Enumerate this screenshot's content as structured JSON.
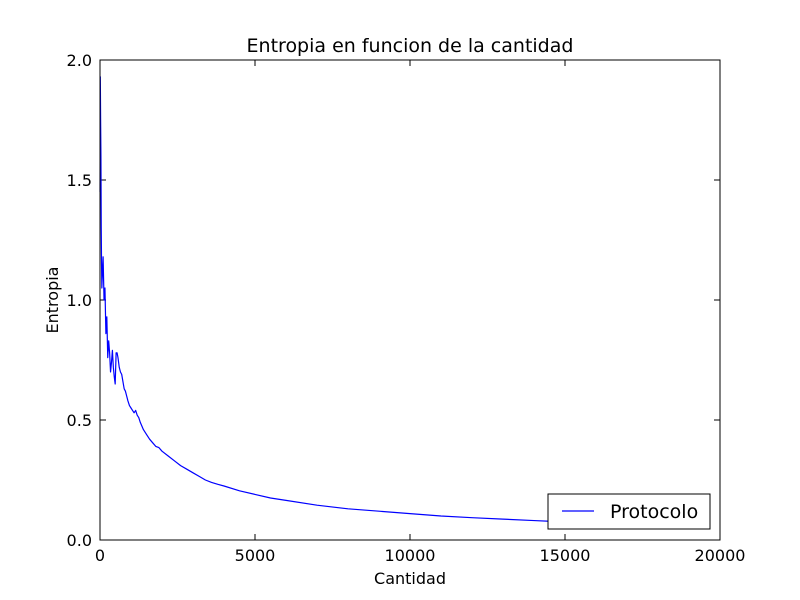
{
  "chart_data": {
    "type": "line",
    "title": "Entropia en funcion de la cantidad",
    "xlabel": "Cantidad",
    "ylabel": "Entropia",
    "xlim": [
      0,
      20000
    ],
    "ylim": [
      0.0,
      2.0
    ],
    "xticks": [
      0,
      5000,
      10000,
      15000,
      20000
    ],
    "xtick_labels": [
      "0",
      "5000",
      "10000",
      "15000",
      "20000"
    ],
    "yticks": [
      0.0,
      0.5,
      1.0,
      1.5,
      2.0
    ],
    "ytick_labels": [
      "0.0",
      "0.5",
      "1.0",
      "1.5",
      "2.0"
    ],
    "grid": false,
    "legend_placement": "lower-right",
    "series": [
      {
        "name": "Protocolo",
        "color": "#0000ff",
        "x": [
          1,
          10,
          20,
          30,
          40,
          50,
          60,
          80,
          100,
          130,
          160,
          190,
          220,
          250,
          280,
          310,
          340,
          370,
          400,
          430,
          460,
          490,
          520,
          550,
          580,
          620,
          660,
          700,
          740,
          780,
          820,
          860,
          900,
          950,
          1000,
          1050,
          1100,
          1150,
          1200,
          1250,
          1300,
          1400,
          1500,
          1600,
          1700,
          1800,
          1900,
          2000,
          2200,
          2400,
          2600,
          2800,
          3000,
          3200,
          3400,
          3600,
          3800,
          4000,
          4500,
          5000,
          5500,
          6000,
          7000,
          8000,
          9000,
          10000,
          11000,
          12000,
          13000,
          14000,
          14500
        ],
        "y": [
          1.45,
          1.93,
          1.75,
          1.6,
          1.3,
          1.15,
          1.05,
          1.12,
          1.18,
          1.0,
          1.05,
          0.86,
          0.93,
          0.76,
          0.83,
          0.78,
          0.7,
          0.74,
          0.79,
          0.72,
          0.68,
          0.65,
          0.78,
          0.78,
          0.76,
          0.72,
          0.7,
          0.69,
          0.66,
          0.63,
          0.62,
          0.6,
          0.58,
          0.56,
          0.55,
          0.54,
          0.53,
          0.54,
          0.52,
          0.51,
          0.49,
          0.46,
          0.44,
          0.42,
          0.405,
          0.39,
          0.385,
          0.37,
          0.35,
          0.33,
          0.31,
          0.295,
          0.28,
          0.265,
          0.25,
          0.24,
          0.232,
          0.225,
          0.205,
          0.19,
          0.175,
          0.165,
          0.145,
          0.13,
          0.12,
          0.11,
          0.1,
          0.093,
          0.087,
          0.081,
          0.078
        ]
      }
    ]
  }
}
